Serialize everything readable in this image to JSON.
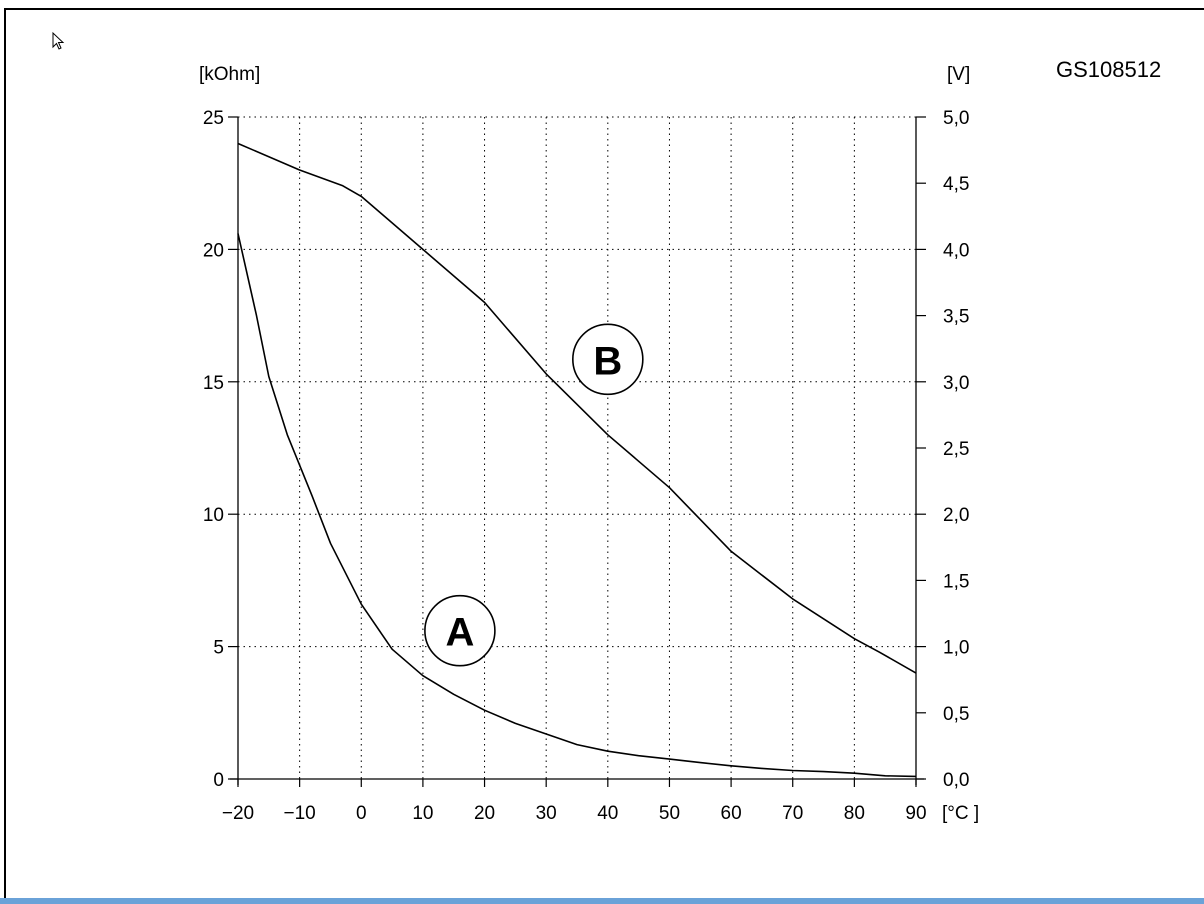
{
  "document_code": "GS108512",
  "chart_data": {
    "type": "line",
    "left_unit": "[kOhm]",
    "right_unit": "[V]",
    "x_unit": "[°C ]",
    "x_ticks": [
      -20,
      -10,
      0,
      10,
      20,
      30,
      40,
      50,
      60,
      70,
      80,
      90
    ],
    "x_tick_labels": [
      "−20",
      "−10",
      "0",
      "10",
      "20",
      "30",
      "40",
      "50",
      "60",
      "70",
      "80",
      "90"
    ],
    "xlim": [
      -20,
      90
    ],
    "y_left_ticks": [
      0,
      5,
      10,
      15,
      20,
      25
    ],
    "y_left_tick_labels": [
      "0",
      "5",
      "10",
      "15",
      "20",
      "25"
    ],
    "ylim_left": [
      0,
      25
    ],
    "y_right_ticks": [
      0,
      0.5,
      1,
      1.5,
      2,
      2.5,
      3,
      3.5,
      4,
      4.5,
      5
    ],
    "y_right_tick_labels": [
      "0,0",
      "0,5",
      "1,0",
      "1,5",
      "2,0",
      "2,5",
      "3,0",
      "3,5",
      "4,0",
      "4,5",
      "5,0"
    ],
    "ylim_right": [
      0,
      5
    ],
    "grid": true,
    "grid_style": "dotted",
    "series": [
      {
        "name": "A",
        "axis": "left",
        "x": [
          -20,
          -17,
          -15,
          -12,
          -8,
          -5,
          0,
          5,
          10,
          15,
          20,
          25,
          30,
          35,
          40,
          45,
          50,
          55,
          60,
          65,
          70,
          75,
          80,
          85,
          90
        ],
        "y": [
          20.6,
          17.5,
          15.2,
          13.0,
          10.7,
          8.9,
          6.6,
          4.9,
          3.9,
          3.2,
          2.6,
          2.1,
          1.7,
          1.3,
          1.05,
          0.88,
          0.75,
          0.62,
          0.5,
          0.4,
          0.32,
          0.28,
          0.22,
          0.12,
          0.1
        ]
      },
      {
        "name": "B",
        "axis": "right",
        "x": [
          -20,
          -10,
          -3,
          0,
          10,
          20,
          30,
          40,
          50,
          60,
          70,
          80,
          84,
          90
        ],
        "y": [
          4.8,
          4.6,
          4.48,
          4.4,
          4.0,
          3.6,
          3.06,
          2.6,
          2.2,
          1.72,
          1.36,
          1.06,
          0.96,
          0.8
        ]
      }
    ],
    "annotations": [
      {
        "text": "A",
        "x": 16,
        "y": 5.6,
        "axis": "left"
      },
      {
        "text": "B",
        "x": 40,
        "y": 3.17,
        "axis": "right"
      }
    ]
  }
}
